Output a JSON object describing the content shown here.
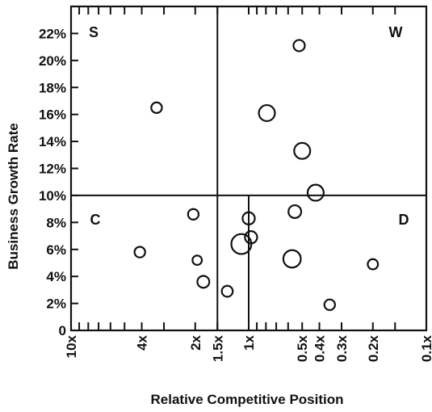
{
  "chart_data": {
    "type": "scatter",
    "subtype": "bubble",
    "title": "",
    "xlabel": "Relative Competitive Position",
    "ylabel": "Business Growth Rate",
    "x_scale": "log",
    "x_reversed": true,
    "xlim": [
      10,
      0.1
    ],
    "ylim": [
      0,
      24
    ],
    "y_unit": "%",
    "y_ticks": [
      0,
      2,
      4,
      6,
      8,
      10,
      12,
      14,
      16,
      18,
      20,
      22
    ],
    "y_tick_labels": [
      "0",
      "2%",
      "4%",
      "6%",
      "8%",
      "10%",
      "12%",
      "14%",
      "16%",
      "18%",
      "20%",
      "22%"
    ],
    "x_ticks": [
      10,
      4,
      2,
      1.5,
      1,
      0.5,
      0.4,
      0.3,
      0.2,
      0.1
    ],
    "x_tick_labels": [
      "10x",
      "4x",
      "2x",
      "1.5x",
      "1x",
      "0.5x",
      "0.4x",
      "0.3x",
      "0.2x",
      "0.1x"
    ],
    "x_minor_ticks": [
      9,
      8,
      7,
      6,
      5,
      3,
      0.9,
      0.8,
      0.7,
      0.6,
      0.15
    ],
    "dividers": {
      "x": 1.5,
      "y": 10
    },
    "secondary_divider_x": 1,
    "grid": false,
    "quadrants": [
      {
        "label": "S",
        "position": "top-left"
      },
      {
        "label": "W",
        "position": "top-right"
      },
      {
        "label": "C",
        "position": "bottom-left"
      },
      {
        "label": "D",
        "position": "bottom-right"
      }
    ],
    "series": [
      {
        "points": [
          {
            "x": 0.52,
            "y": 21.1,
            "size": 1
          },
          {
            "x": 3.3,
            "y": 16.5,
            "size": 0.8
          },
          {
            "x": 0.79,
            "y": 16.1,
            "size": 3
          },
          {
            "x": 0.5,
            "y": 13.3,
            "size": 3
          },
          {
            "x": 0.42,
            "y": 10.2,
            "size": 3
          },
          {
            "x": 2.05,
            "y": 8.6,
            "size": 0.8
          },
          {
            "x": 1.0,
            "y": 8.3,
            "size": 1.3
          },
          {
            "x": 0.55,
            "y": 8.8,
            "size": 1.5
          },
          {
            "x": 0.97,
            "y": 6.9,
            "size": 1.3
          },
          {
            "x": 1.1,
            "y": 6.4,
            "size": 5.5
          },
          {
            "x": 0.57,
            "y": 5.3,
            "size": 3.8
          },
          {
            "x": 4.1,
            "y": 5.8,
            "size": 0.8
          },
          {
            "x": 1.95,
            "y": 5.2,
            "size": 0.5
          },
          {
            "x": 1.8,
            "y": 3.6,
            "size": 1.2
          },
          {
            "x": 1.32,
            "y": 2.9,
            "size": 0.9
          },
          {
            "x": 0.35,
            "y": 1.9,
            "size": 0.8
          },
          {
            "x": 0.2,
            "y": 4.9,
            "size": 0.7
          }
        ]
      }
    ]
  }
}
